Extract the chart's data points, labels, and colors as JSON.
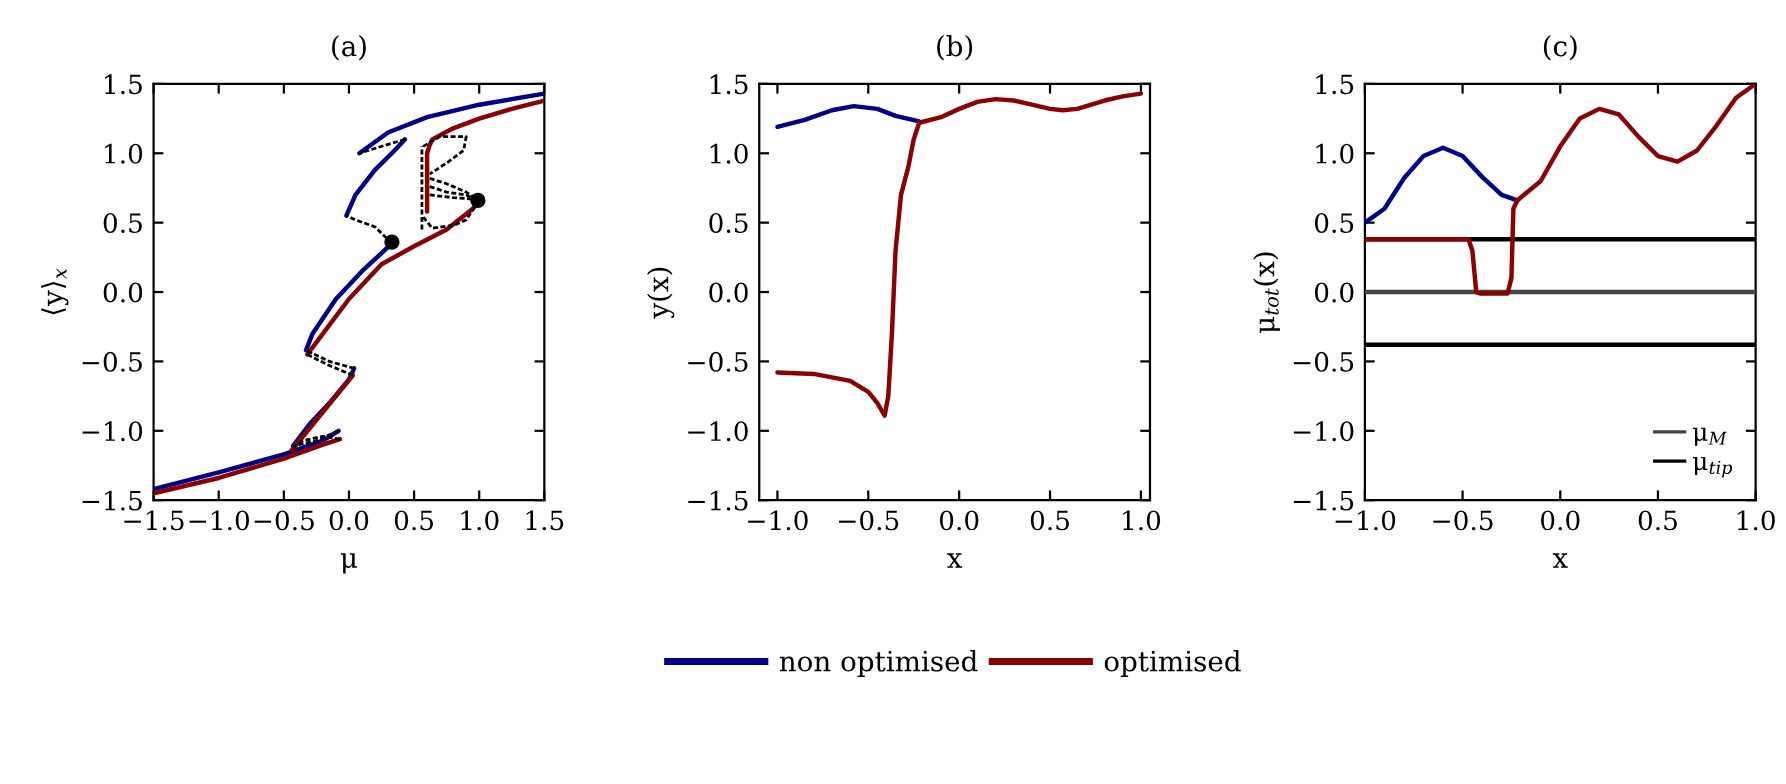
{
  "chart_data": [
    {
      "type": "line",
      "title": "(a)",
      "xlabel": "μ",
      "ylabel": "⟨y⟩$_{x}$",
      "xlim": [
        -1.5,
        1.5
      ],
      "ylim": [
        -1.5,
        1.5
      ],
      "xticks": [
        {
          "value": -1.5,
          "label": "−1.5"
        },
        {
          "value": -1.0,
          "label": "−1.0"
        },
        {
          "value": -0.5,
          "label": "−0.5"
        },
        {
          "value": 0,
          "label": "0.0"
        },
        {
          "value": 0.5,
          "label": "0.5"
        },
        {
          "value": 1,
          "label": "1.0"
        },
        {
          "value": 1.5,
          "label": "1.5"
        }
      ],
      "yticks": [
        {
          "value": -1.5,
          "label": "−1.5"
        },
        {
          "value": -1.0,
          "label": "−1.0"
        },
        {
          "value": -0.5,
          "label": "−0.5"
        },
        {
          "value": 0,
          "label": "0.0"
        },
        {
          "value": 0.5,
          "label": "0.5"
        },
        {
          "value": 1,
          "label": "1.0"
        },
        {
          "value": 1.5,
          "label": "1.5"
        }
      ],
      "grid": false,
      "series": [
        {
          "color": "#00008b",
          "x": [
            -1.5,
            -1.0,
            -0.5,
            -0.2,
            -0.08
          ],
          "values": [
            -1.42,
            -1.3,
            -1.17,
            -1.07,
            -1.0
          ]
        },
        {
          "color": "#000000",
          "line_style": "dashed",
          "x": [
            -0.08,
            -0.25,
            -0.43
          ],
          "values": [
            -1.0,
            -1.07,
            -1.11
          ]
        },
        {
          "color": "#00008b",
          "x": [
            -0.43,
            -0.3,
            -0.15,
            0.0,
            0.04
          ],
          "values": [
            -1.11,
            -0.95,
            -0.8,
            -0.63,
            -0.55
          ]
        },
        {
          "color": "#000000",
          "line_style": "dashed",
          "x": [
            0.04,
            -0.15,
            -0.33
          ],
          "values": [
            -0.55,
            -0.5,
            -0.42
          ]
        },
        {
          "color": "#00008b",
          "x": [
            -0.33,
            -0.28,
            -0.1,
            0.1,
            0.25,
            0.33
          ],
          "values": [
            -0.42,
            -0.3,
            -0.05,
            0.15,
            0.28,
            0.35
          ]
        },
        {
          "color": "#000000",
          "line_style": "dashed",
          "x": [
            0.33,
            0.2,
            0.05,
            -0.02
          ],
          "values": [
            0.35,
            0.47,
            0.52,
            0.55
          ]
        },
        {
          "color": "#00008b",
          "x": [
            -0.02,
            0.05,
            0.2,
            0.35,
            0.43
          ],
          "values": [
            0.55,
            0.7,
            0.88,
            1.02,
            1.1
          ]
        },
        {
          "color": "#000000",
          "line_style": "dashed",
          "x": [
            0.43,
            0.25,
            0.08
          ],
          "values": [
            1.1,
            1.05,
            1.0
          ]
        },
        {
          "color": "#00008b",
          "x": [
            0.08,
            0.3,
            0.6,
            1.0,
            1.5
          ],
          "values": [
            1.0,
            1.15,
            1.26,
            1.35,
            1.43
          ]
        },
        {
          "color": "#8b0000",
          "x": [
            -1.5,
            -1.0,
            -0.5,
            -0.2,
            -0.07
          ],
          "values": [
            -1.45,
            -1.34,
            -1.2,
            -1.1,
            -1.06
          ]
        },
        {
          "color": "#000000",
          "line_style": "dashed",
          "x": [
            -0.07,
            -0.2,
            -0.35,
            -0.44
          ],
          "values": [
            -1.06,
            -1.04,
            -1.07,
            -1.13
          ]
        },
        {
          "color": "#8b0000",
          "x": [
            -0.44,
            -0.3,
            -0.1,
            0.03
          ],
          "values": [
            -1.14,
            -0.98,
            -0.75,
            -0.6
          ]
        },
        {
          "color": "#000000",
          "line_style": "dashed",
          "x": [
            0.03,
            -0.15,
            -0.32
          ],
          "values": [
            -0.6,
            -0.53,
            -0.45
          ]
        },
        {
          "color": "#8b0000",
          "x": [
            -0.32,
            -0.2,
            0.0,
            0.25,
            0.5,
            0.75,
            0.95,
            1.0
          ],
          "values": [
            -0.45,
            -0.3,
            -0.05,
            0.2,
            0.33,
            0.45,
            0.6,
            0.66
          ]
        },
        {
          "color": "#8b0000",
          "x": [
            0.6,
            0.6,
            0.6,
            0.62,
            0.64,
            0.8,
            1.0,
            1.25,
            1.5
          ],
          "values": [
            0.58,
            0.8,
            1.0,
            1.06,
            1.1,
            1.18,
            1.25,
            1.32,
            1.38
          ]
        },
        {
          "color": "#000000",
          "line_style": "dashed",
          "x": [
            0.56,
            0.56
          ],
          "values": [
            0.45,
            1.05
          ]
        },
        {
          "color": "#000000",
          "line_style": "dashed",
          "x": [
            0.57,
            0.7,
            0.9,
            0.88,
            0.75,
            0.62
          ],
          "values": [
            1.05,
            1.12,
            1.12,
            1.02,
            0.93,
            0.85
          ]
        },
        {
          "color": "#000000",
          "line_style": "dashed",
          "x": [
            0.57,
            0.64,
            0.8,
            0.9,
            1.0
          ],
          "values": [
            0.54,
            0.46,
            0.48,
            0.52,
            0.66
          ]
        },
        {
          "color": "#000000",
          "line_style": "dashed",
          "x": [
            0.62,
            0.75,
            0.9,
            1.0
          ],
          "values": [
            0.82,
            0.78,
            0.72,
            0.66
          ]
        },
        {
          "color": "#000000",
          "line_style": "dashed",
          "x": [
            0.62,
            0.75,
            0.9,
            0.99
          ],
          "values": [
            0.76,
            0.72,
            0.7,
            0.66
          ]
        },
        {
          "color": "#000000",
          "line_style": "dashed",
          "x": [
            0.62,
            0.8,
            0.95,
            1.0
          ],
          "values": [
            0.7,
            0.68,
            0.67,
            0.66
          ]
        },
        {
          "type": "scatter",
          "marker": "circle",
          "color": "#000000",
          "x": [
            0.33,
            0.99
          ],
          "values": [
            0.36,
            0.66
          ]
        }
      ]
    },
    {
      "type": "line",
      "title": "(b)",
      "xlabel": "x",
      "ylabel": "y(x)",
      "xlim": [
        -1.1,
        1.05
      ],
      "ylim": [
        -1.5,
        1.5
      ],
      "xticks": [
        {
          "value": -1.0,
          "label": "−1.0"
        },
        {
          "value": -0.5,
          "label": "−0.5"
        },
        {
          "value": 0,
          "label": "0.0"
        },
        {
          "value": 0.5,
          "label": "0.5"
        },
        {
          "value": 1,
          "label": "1.0"
        }
      ],
      "yticks": [
        {
          "value": -1.5,
          "label": "−1.5"
        },
        {
          "value": -1.0,
          "label": "−1.0"
        },
        {
          "value": -0.5,
          "label": "−0.5"
        },
        {
          "value": 0,
          "label": "0.0"
        },
        {
          "value": 0.5,
          "label": "0.5"
        },
        {
          "value": 1,
          "label": "1.0"
        },
        {
          "value": 1.5,
          "label": "1.5"
        }
      ],
      "grid": false,
      "legend": "bottom",
      "series": [
        {
          "name": "non optimised",
          "color": "#00008b",
          "x": [
            -1.0,
            -0.85,
            -0.7,
            -0.58,
            -0.45,
            -0.35,
            -0.22
          ],
          "values": [
            1.19,
            1.24,
            1.31,
            1.34,
            1.32,
            1.27,
            1.23
          ]
        },
        {
          "name": "optimised",
          "color": "#8b0000",
          "x": [
            -1.0,
            -0.8,
            -0.6,
            -0.5,
            -0.45,
            -0.41,
            -0.39,
            -0.37,
            -0.35,
            -0.32,
            -0.28,
            -0.25,
            -0.22,
            -0.1,
            0.0,
            0.1,
            0.2,
            0.3,
            0.4,
            0.5,
            0.57,
            0.65,
            0.8,
            0.9,
            1.0
          ],
          "values": [
            -0.58,
            -0.59,
            -0.64,
            -0.72,
            -0.8,
            -0.89,
            -0.75,
            -0.3,
            0.3,
            0.7,
            0.9,
            1.1,
            1.22,
            1.26,
            1.32,
            1.37,
            1.39,
            1.38,
            1.35,
            1.32,
            1.31,
            1.32,
            1.38,
            1.41,
            1.43
          ]
        }
      ]
    },
    {
      "type": "line",
      "title": "(c)",
      "xlabel": "x",
      "ylabel": "μ$_{tot}$(x)",
      "xlim": [
        -1.0,
        1.0
      ],
      "ylim": [
        -1.5,
        1.5
      ],
      "xticks": [
        {
          "value": -1.0,
          "label": "−1.0"
        },
        {
          "value": -0.5,
          "label": "−0.5"
        },
        {
          "value": 0,
          "label": "0.0"
        },
        {
          "value": 0.5,
          "label": "0.5"
        },
        {
          "value": 1,
          "label": "1.0"
        }
      ],
      "yticks": [
        {
          "value": -1.5,
          "label": "−1.5"
        },
        {
          "value": -1.0,
          "label": "−1.0"
        },
        {
          "value": -0.5,
          "label": "−0.5"
        },
        {
          "value": 0,
          "label": "0.0"
        },
        {
          "value": 0.5,
          "label": "0.5"
        },
        {
          "value": 1,
          "label": "1.0"
        },
        {
          "value": 1.5,
          "label": "1.5"
        }
      ],
      "grid": false,
      "legend": "lower right",
      "series": [
        {
          "name": "μ$_{M}$",
          "color": "#444444",
          "x": [
            -1.0,
            1.0
          ],
          "values": [
            0.0,
            0.0
          ]
        },
        {
          "name": "μ$_{tip}$",
          "color": "#000000",
          "x": [
            -1.0,
            1.0
          ],
          "values": [
            0.38,
            0.38
          ]
        },
        {
          "color": "#000000",
          "x": [
            -1.0,
            1.0
          ],
          "values": [
            -0.38,
            -0.38
          ]
        },
        {
          "color": "#00008b",
          "x": [
            -1.0,
            -0.9,
            -0.8,
            -0.7,
            -0.6,
            -0.5,
            -0.4,
            -0.3,
            -0.22
          ],
          "values": [
            0.5,
            0.6,
            0.82,
            0.98,
            1.04,
            0.98,
            0.83,
            0.7,
            0.66
          ]
        },
        {
          "color": "#8b0000",
          "x": [
            -1.0,
            -0.47,
            -0.45,
            -0.43,
            -0.41,
            -0.27,
            -0.25,
            -0.24,
            -0.22,
            -0.1,
            0.0,
            0.1,
            0.2,
            0.3,
            0.4,
            0.5,
            0.6,
            0.7,
            0.8,
            0.9,
            1.0
          ],
          "values": [
            0.38,
            0.38,
            0.3,
            0.0,
            -0.01,
            -0.01,
            0.1,
            0.6,
            0.66,
            0.8,
            1.05,
            1.25,
            1.32,
            1.28,
            1.12,
            0.98,
            0.94,
            1.02,
            1.2,
            1.4,
            1.5
          ]
        }
      ]
    }
  ]
}
